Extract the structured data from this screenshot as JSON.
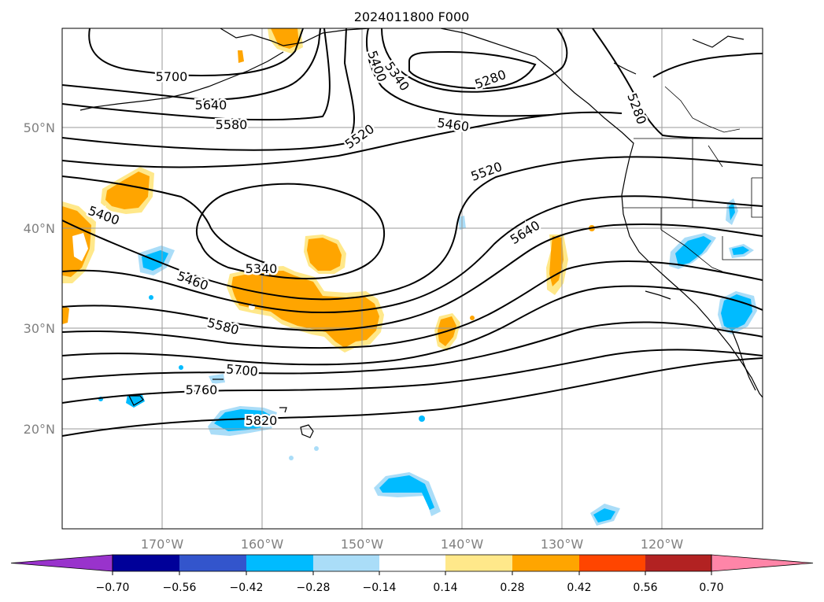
{
  "title": "2024011800 F000",
  "map": {
    "lat_labels": [
      {
        "text": "50°N",
        "lat": 50
      },
      {
        "text": "40°N",
        "lat": 40
      },
      {
        "text": "30°N",
        "lat": 30
      },
      {
        "text": "20°N",
        "lat": 20
      }
    ],
    "lon_labels": [
      {
        "text": "170°W",
        "lon": -170
      },
      {
        "text": "160°W",
        "lon": -160
      },
      {
        "text": "150°W",
        "lon": -150
      },
      {
        "text": "140°W",
        "lon": -140
      },
      {
        "text": "130°W",
        "lon": -130
      },
      {
        "text": "120°W",
        "lon": -120
      }
    ],
    "contour_labels": [
      "5700",
      "5640",
      "5580",
      "5520",
      "5400",
      "5340",
      "5280",
      "5460",
      "5520",
      "5280",
      "5640",
      "5400",
      "5340",
      "5460",
      "5580",
      "5700",
      "5760",
      "5820"
    ]
  },
  "colorbar": {
    "colors": [
      "#9933cc",
      "#000099",
      "#3355cc",
      "#00bbff",
      "#aaddf8",
      "#ffffff",
      "#ffe88a",
      "#ffa500",
      "#ff4500",
      "#b22222",
      "#ff85a8"
    ],
    "ticks": [
      "−0.70",
      "−0.56",
      "−0.42",
      "−0.28",
      "−0.14",
      "0.14",
      "0.28",
      "0.42",
      "0.56",
      "0.70"
    ]
  }
}
